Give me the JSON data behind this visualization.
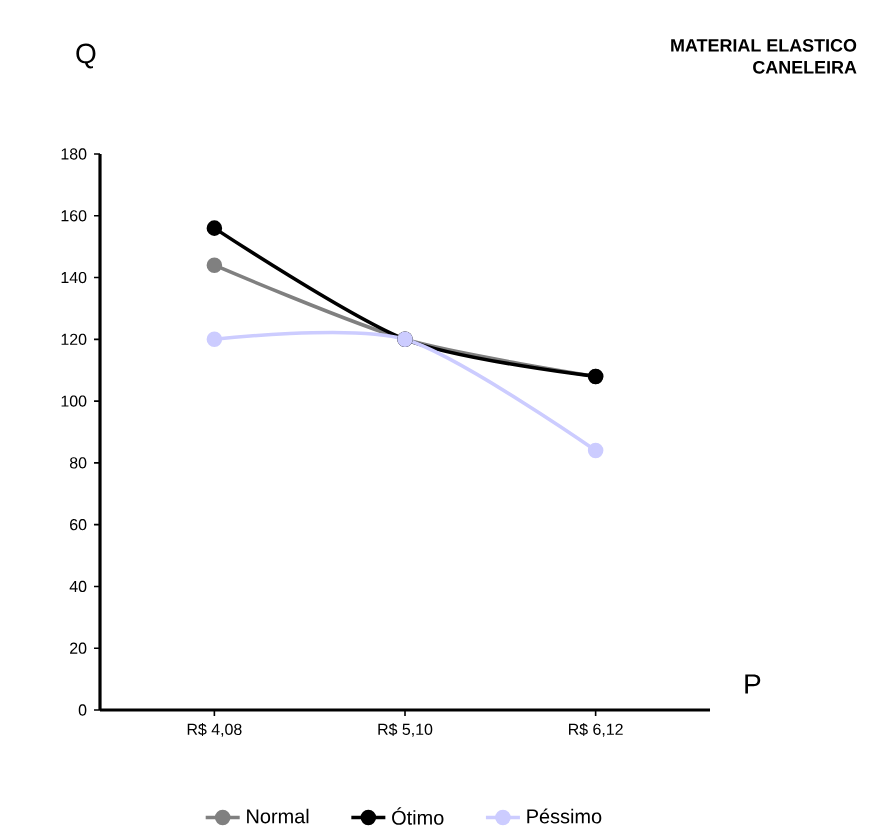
{
  "chart_data": {
    "type": "line",
    "title": "MATERIAL ELASTICO",
    "subtitle": "CANELEIRA",
    "xlabel": "P",
    "ylabel": "Q",
    "categories": [
      "R$ 4,08",
      "R$ 5,10",
      "R$ 6,12"
    ],
    "series": [
      {
        "name": "Normal",
        "color": "#808080",
        "values": [
          144,
          120,
          108
        ]
      },
      {
        "name": "Ótimo",
        "color": "#000000",
        "values": [
          156,
          120,
          108
        ]
      },
      {
        "name": "Péssimo",
        "color": "#ccccff",
        "values": [
          120,
          120,
          84
        ]
      }
    ],
    "ylim": [
      0,
      180
    ],
    "yticks": [
      0,
      20,
      40,
      60,
      80,
      100,
      120,
      140,
      160,
      180
    ],
    "marker": "circle",
    "line_style": "solid",
    "grid": false,
    "legend": "bottom"
  }
}
